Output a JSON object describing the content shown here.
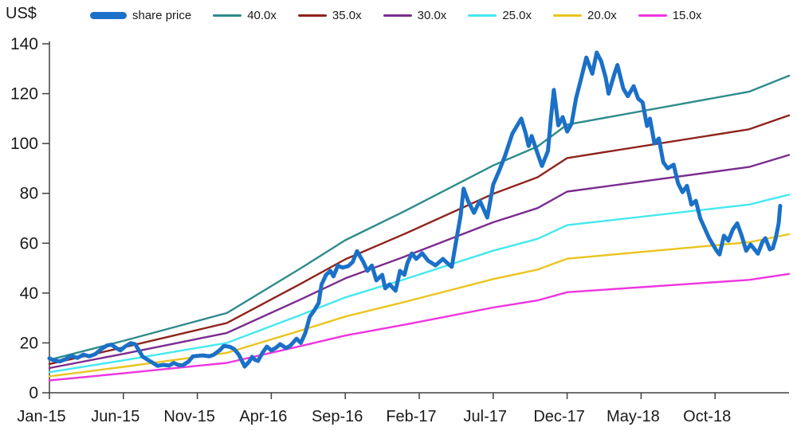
{
  "page": {
    "background": "#ffffff"
  },
  "chart_data": {
    "type": "line",
    "title": "",
    "ylabel": "US$",
    "xlabel": "",
    "grid": false,
    "legend_position": "top",
    "axis_color": "#404040",
    "ylim": [
      0,
      140
    ],
    "y_ticks": [
      0,
      20,
      40,
      60,
      80,
      100,
      120,
      140
    ],
    "x_tick_labels": [
      "Jan-15",
      "Jun-15",
      "Nov-15",
      "Apr-16",
      "Sep-16",
      "Feb-17",
      "Jul-17",
      "Dec-17",
      "May-18",
      "Oct-18"
    ],
    "x_tick_months": [
      0,
      5,
      10,
      15,
      20,
      25,
      30,
      35,
      40,
      45
    ],
    "xlim_months": [
      0,
      50
    ],
    "legend": [
      {
        "label": "share price",
        "color": "#1b70c8",
        "style": "thick"
      },
      {
        "label": "40.0x",
        "color": "#2e8b8b",
        "style": "line"
      },
      {
        "label": "35.0x",
        "color": "#8e241c",
        "style": "line"
      },
      {
        "label": "30.0x",
        "color": "#7a2d8e",
        "style": "line"
      },
      {
        "label": "25.0x",
        "color": "#45e8ef",
        "style": "line"
      },
      {
        "label": "20.0x",
        "color": "#e9c51f",
        "style": "line"
      },
      {
        "label": "15.0x",
        "color": "#ee35df",
        "style": "line"
      }
    ],
    "pe_bands": {
      "description": "P/E valuation bands; each band value = forward EPS (US$) x multiple. EPS curve given as [month_from_Jan15, eps] breakpoints.",
      "multiples": [
        40,
        35,
        30,
        25,
        20,
        15
      ],
      "colors": [
        "#2e8b8b",
        "#8e241c",
        "#7a2d8e",
        "#45e8ef",
        "#e9c51f",
        "#ee35df"
      ],
      "eps_breakpoints": [
        [
          0,
          0.33
        ],
        [
          5,
          0.52
        ],
        [
          10,
          0.72
        ],
        [
          12,
          0.8
        ],
        [
          17,
          1.25
        ],
        [
          20,
          1.53
        ],
        [
          24,
          1.82
        ],
        [
          30,
          2.28
        ],
        [
          33,
          2.47
        ],
        [
          35,
          2.69
        ],
        [
          47.3,
          3.02
        ],
        [
          50,
          3.18
        ]
      ]
    },
    "series": [
      {
        "name": "share price",
        "color": "#1b70c8",
        "width": 5,
        "points": [
          [
            0,
            13.8
          ],
          [
            0.3,
            13.0
          ],
          [
            0.7,
            12.6
          ],
          [
            1.1,
            13.5
          ],
          [
            1.5,
            14.8
          ],
          [
            1.9,
            14.0
          ],
          [
            2.3,
            15.3
          ],
          [
            2.7,
            14.6
          ],
          [
            3.1,
            15.5
          ],
          [
            3.5,
            17.5
          ],
          [
            3.9,
            19.0
          ],
          [
            4.2,
            19.3
          ],
          [
            4.5,
            18.0
          ],
          [
            4.8,
            17.0
          ],
          [
            5.1,
            18.5
          ],
          [
            5.5,
            19.9
          ],
          [
            5.8,
            19.5
          ],
          [
            6.1,
            16.5
          ],
          [
            6.3,
            14.5
          ],
          [
            6.7,
            13.0
          ],
          [
            7.0,
            12.0
          ],
          [
            7.3,
            10.8
          ],
          [
            7.7,
            11.2
          ],
          [
            8.1,
            10.9
          ],
          [
            8.4,
            12.0
          ],
          [
            8.7,
            11.2
          ],
          [
            9.0,
            11.0
          ],
          [
            9.4,
            12.5
          ],
          [
            9.7,
            14.6
          ],
          [
            10.0,
            14.8
          ],
          [
            10.4,
            15.0
          ],
          [
            10.8,
            14.6
          ],
          [
            11.1,
            15.2
          ],
          [
            11.5,
            17.0
          ],
          [
            11.8,
            18.8
          ],
          [
            12.2,
            18.4
          ],
          [
            12.5,
            17.5
          ],
          [
            12.8,
            15.3
          ],
          [
            13.1,
            11.8
          ],
          [
            13.2,
            10.5
          ],
          [
            13.5,
            12.5
          ],
          [
            13.7,
            14.4
          ],
          [
            13.9,
            13.2
          ],
          [
            14.1,
            12.8
          ],
          [
            14.4,
            16.0
          ],
          [
            14.7,
            18.5
          ],
          [
            15.0,
            17.0
          ],
          [
            15.3,
            18.0
          ],
          [
            15.6,
            19.5
          ],
          [
            16.0,
            17.9
          ],
          [
            16.3,
            19.0
          ],
          [
            16.7,
            21.7
          ],
          [
            17.0,
            20.0
          ],
          [
            17.3,
            24.0
          ],
          [
            17.6,
            30.5
          ],
          [
            17.9,
            33.0
          ],
          [
            18.2,
            36.0
          ],
          [
            18.4,
            43.5
          ],
          [
            18.7,
            47.3
          ],
          [
            19.0,
            48.9
          ],
          [
            19.2,
            46.7
          ],
          [
            19.5,
            51.0
          ],
          [
            19.8,
            50.2
          ],
          [
            20.2,
            50.8
          ],
          [
            20.5,
            52.5
          ],
          [
            20.8,
            56.8
          ],
          [
            21.0,
            54.7
          ],
          [
            21.2,
            52.7
          ],
          [
            21.5,
            48.9
          ],
          [
            21.8,
            51.0
          ],
          [
            22.1,
            45.1
          ],
          [
            22.5,
            47.3
          ],
          [
            22.7,
            41.9
          ],
          [
            23.0,
            43.5
          ],
          [
            23.4,
            40.9
          ],
          [
            23.7,
            48.9
          ],
          [
            24.0,
            47.3
          ],
          [
            24.2,
            52.0
          ],
          [
            24.5,
            55.9
          ],
          [
            24.8,
            53.7
          ],
          [
            25.2,
            56.0
          ],
          [
            25.6,
            53.0
          ],
          [
            26.1,
            51.1
          ],
          [
            26.6,
            53.7
          ],
          [
            26.9,
            52.0
          ],
          [
            27.2,
            50.5
          ],
          [
            27.5,
            61.0
          ],
          [
            27.8,
            71.2
          ],
          [
            28.0,
            81.9
          ],
          [
            28.3,
            77.0
          ],
          [
            28.7,
            72.2
          ],
          [
            29.1,
            77.0
          ],
          [
            29.4,
            73.0
          ],
          [
            29.6,
            70.3
          ],
          [
            30.0,
            83.5
          ],
          [
            30.4,
            89.0
          ],
          [
            30.8,
            95.0
          ],
          [
            31.3,
            104.0
          ],
          [
            31.9,
            110.0
          ],
          [
            32.2,
            104.0
          ],
          [
            32.4,
            99.0
          ],
          [
            32.6,
            103.0
          ],
          [
            33.0,
            96.0
          ],
          [
            33.3,
            91.0
          ],
          [
            33.7,
            97.0
          ],
          [
            33.9,
            110.0
          ],
          [
            34.1,
            121.5
          ],
          [
            34.4,
            107.3
          ],
          [
            34.7,
            110.6
          ],
          [
            35.0,
            104.8
          ],
          [
            35.3,
            108.0
          ],
          [
            35.6,
            118.0
          ],
          [
            35.9,
            125.0
          ],
          [
            36.3,
            134.5
          ],
          [
            36.7,
            128.0
          ],
          [
            37.0,
            136.5
          ],
          [
            37.3,
            133.0
          ],
          [
            37.6,
            126.5
          ],
          [
            37.8,
            120.0
          ],
          [
            38.2,
            128.0
          ],
          [
            38.4,
            131.5
          ],
          [
            38.8,
            122.0
          ],
          [
            39.1,
            119.0
          ],
          [
            39.5,
            123.0
          ],
          [
            39.8,
            118.0
          ],
          [
            40.1,
            116.5
          ],
          [
            40.4,
            107.0
          ],
          [
            40.6,
            110.0
          ],
          [
            40.9,
            100.0
          ],
          [
            41.2,
            102.0
          ],
          [
            41.5,
            92.5
          ],
          [
            41.8,
            90.0
          ],
          [
            42.2,
            91.5
          ],
          [
            42.5,
            84.0
          ],
          [
            42.8,
            80.5
          ],
          [
            43.1,
            83.0
          ],
          [
            43.4,
            75.5
          ],
          [
            43.7,
            77.0
          ],
          [
            44.0,
            70.0
          ],
          [
            44.3,
            66.0
          ],
          [
            44.6,
            62.0
          ],
          [
            44.8,
            60.0
          ],
          [
            45.1,
            57.0
          ],
          [
            45.3,
            55.5
          ],
          [
            45.6,
            63.0
          ],
          [
            45.9,
            61.0
          ],
          [
            46.2,
            65.5
          ],
          [
            46.5,
            68.0
          ],
          [
            46.8,
            63.0
          ],
          [
            47.1,
            57.0
          ],
          [
            47.4,
            59.5
          ],
          [
            47.6,
            58.0
          ],
          [
            47.9,
            55.8
          ],
          [
            48.2,
            60.5
          ],
          [
            48.4,
            62.0
          ],
          [
            48.7,
            57.5
          ],
          [
            48.9,
            58.0
          ],
          [
            49.1,
            62.0
          ],
          [
            49.3,
            68.0
          ],
          [
            49.4,
            75.0
          ]
        ]
      }
    ]
  }
}
